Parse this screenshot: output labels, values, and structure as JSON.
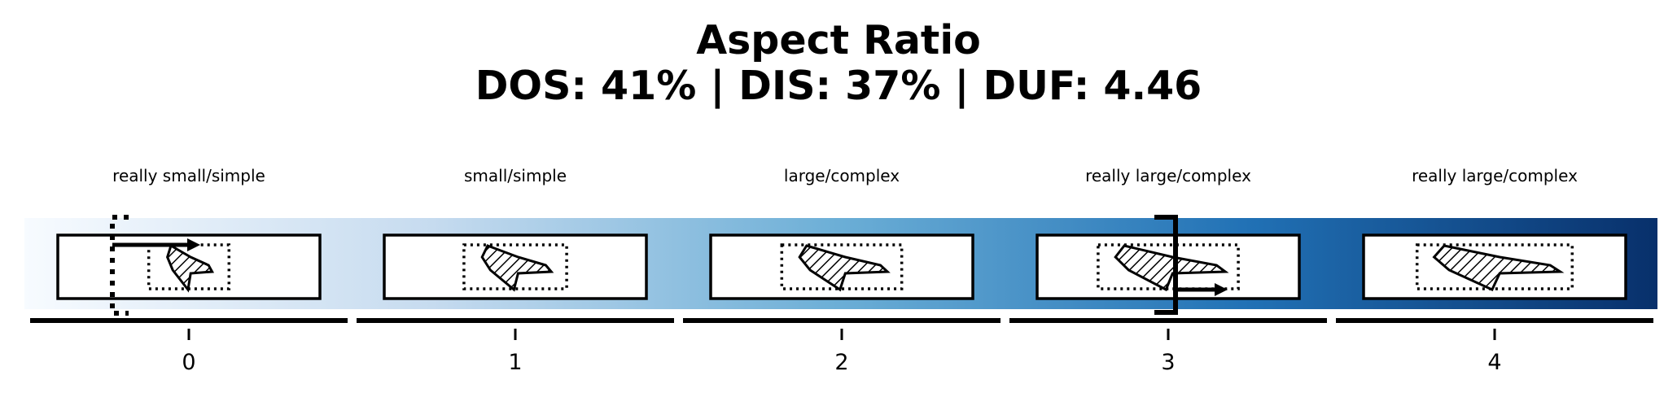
{
  "title": "Aspect Ratio",
  "subtitle": "DOS: 41% | DIS: 37% | DUF: 4.46",
  "gradient_colors": [
    "#f7fbff",
    "#c6dbef",
    "#6baed6",
    "#2171b5",
    "#08306b"
  ],
  "levels": [
    {
      "index": "0",
      "label": "really small/simple"
    },
    {
      "index": "1",
      "label": "small/simple"
    },
    {
      "index": "2",
      "label": "large/complex"
    },
    {
      "index": "3",
      "label": "really large/complex"
    },
    {
      "index": "4",
      "label": "really large/complex"
    }
  ],
  "markers": {
    "left_bracket": {
      "level": 0,
      "style": "dotted"
    },
    "right_bracket": {
      "level": 3,
      "style": "solid"
    }
  }
}
